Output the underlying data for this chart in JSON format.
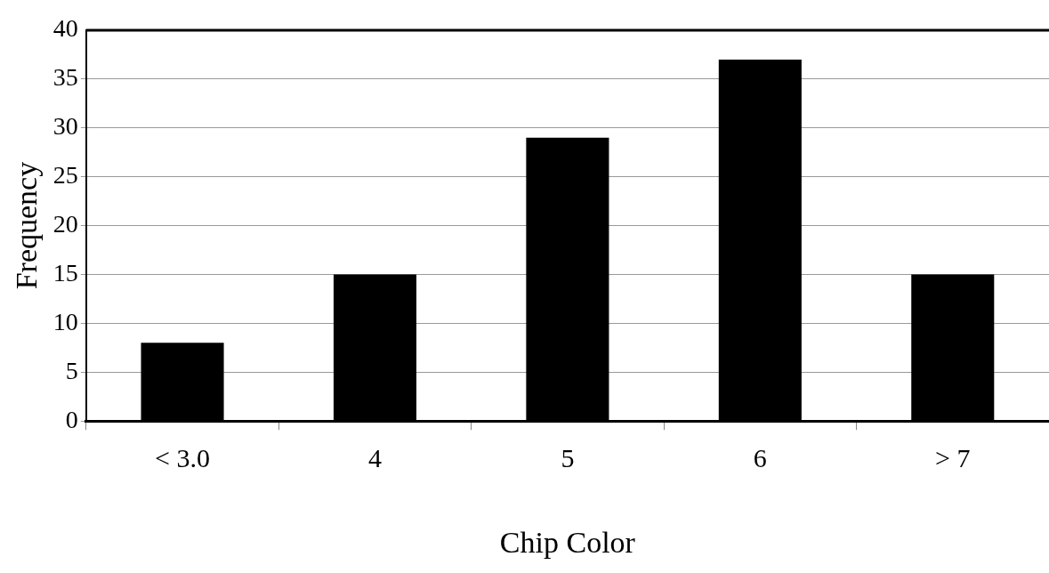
{
  "chart_data": {
    "type": "bar",
    "xlabel": "Chip Color",
    "ylabel": "Frequency",
    "categories": [
      "< 3.0",
      "4",
      "5",
      "6",
      "> 7"
    ],
    "values": [
      8,
      15,
      29,
      37,
      15
    ],
    "color": "#000000",
    "ylim": [
      0,
      40
    ],
    "yticks": [
      0,
      5,
      10,
      15,
      20,
      25,
      30,
      35,
      40
    ],
    "grid": "y"
  }
}
